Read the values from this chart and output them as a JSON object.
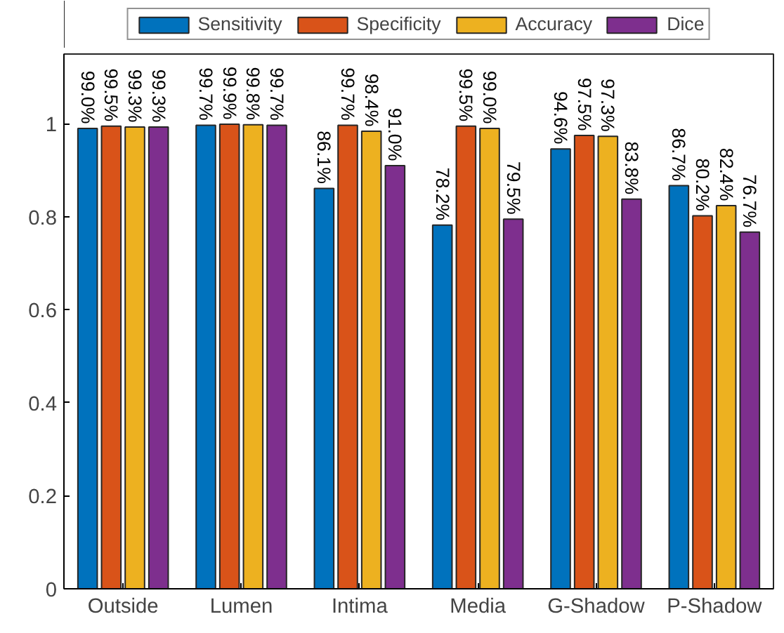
{
  "chart_data": {
    "type": "bar",
    "categories": [
      "Outside",
      "Lumen",
      "Intima",
      "Media",
      "G-Shadow",
      "P-Shadow"
    ],
    "series": [
      {
        "name": "Sensitivity",
        "color": "#0072bd",
        "values": [
          0.99,
          0.997,
          0.861,
          0.782,
          0.946,
          0.867
        ],
        "value_labels": [
          "99.0%",
          "99.7%",
          "86.1%",
          "78.2%",
          "94.6%",
          "86.7%"
        ]
      },
      {
        "name": "Specificity",
        "color": "#d95319",
        "values": [
          0.995,
          0.999,
          0.997,
          0.995,
          0.975,
          0.802
        ],
        "value_labels": [
          "99.5%",
          "99.9%",
          "99.7%",
          "99.5%",
          "97.5%",
          "80.2%"
        ]
      },
      {
        "name": "Accuracy",
        "color": "#edb120",
        "values": [
          0.993,
          0.998,
          0.984,
          0.99,
          0.973,
          0.824
        ],
        "value_labels": [
          "99.3%",
          "99.8%",
          "98.4%",
          "99.0%",
          "97.3%",
          "82.4%"
        ]
      },
      {
        "name": "Dice",
        "color": "#7e2f8e",
        "values": [
          0.993,
          0.997,
          0.91,
          0.795,
          0.838,
          0.767
        ],
        "value_labels": [
          "99.3%",
          "99.7%",
          "91.0%",
          "79.5%",
          "83.8%",
          "76.7%"
        ]
      }
    ],
    "ylim": [
      0,
      1.15
    ],
    "yticks": [
      0,
      0.2,
      0.4,
      0.6,
      0.8,
      1
    ],
    "grid": false,
    "legend": "top"
  }
}
